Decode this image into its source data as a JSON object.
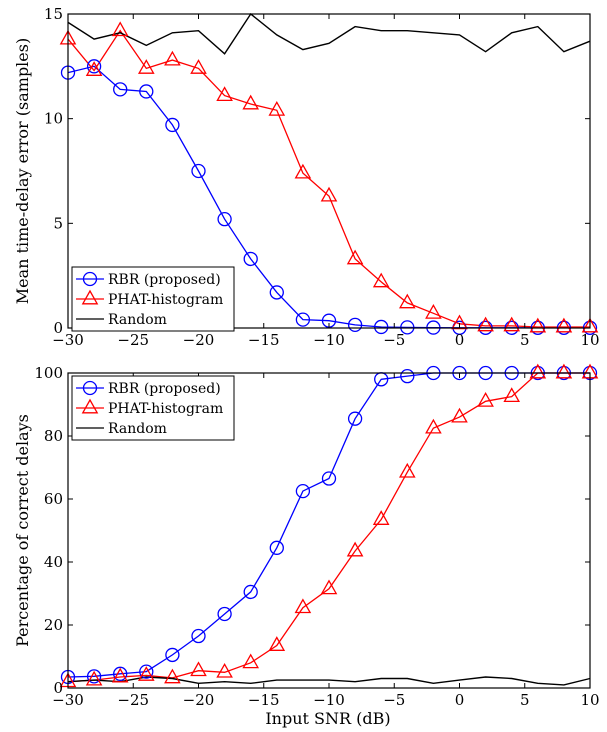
{
  "figure": {
    "x_label": "Input SNR (dB)"
  },
  "chart_data": [
    {
      "type": "line",
      "ylabel": "Mean time-delay error (samples)",
      "xlabel": "",
      "xlim": [
        -30,
        10
      ],
      "ylim": [
        0,
        15
      ],
      "x_ticks": [
        -30,
        -25,
        -20,
        -15,
        -10,
        -5,
        0,
        5,
        10
      ],
      "y_ticks": [
        0,
        5,
        10,
        15
      ],
      "grid": false,
      "legend_position": "bottom-left",
      "series": [
        {
          "name": "RBR (proposed)",
          "color": "#0000ff",
          "marker": "circle",
          "x": [
            -30,
            -28,
            -26,
            -24,
            -22,
            -20,
            -18,
            -16,
            -14,
            -12,
            -10,
            -8,
            -6,
            -4,
            -2,
            0,
            2,
            4,
            6,
            8,
            10
          ],
          "values": [
            12.2,
            12.5,
            11.4,
            11.3,
            9.7,
            7.5,
            5.2,
            3.3,
            1.7,
            0.4,
            0.35,
            0.15,
            0.05,
            0.03,
            0.02,
            0.01,
            0.01,
            0.01,
            0.01,
            0.01,
            0.01
          ]
        },
        {
          "name": "PHAT-histogram",
          "color": "#ff0000",
          "marker": "triangle",
          "x": [
            -30,
            -28,
            -26,
            -24,
            -22,
            -20,
            -18,
            -16,
            -14,
            -12,
            -10,
            -8,
            -6,
            -4,
            -2,
            0,
            2,
            4,
            6,
            8,
            10
          ],
          "values": [
            13.8,
            12.3,
            14.2,
            12.4,
            12.8,
            12.4,
            11.1,
            10.7,
            10.4,
            7.4,
            6.3,
            3.3,
            2.2,
            1.2,
            0.7,
            0.2,
            0.1,
            0.1,
            0.05,
            0.05,
            0.05
          ]
        },
        {
          "name": "Random",
          "color": "#000000",
          "marker": "none",
          "x": [
            -30,
            -28,
            -26,
            -24,
            -22,
            -20,
            -18,
            -16,
            -14,
            -12,
            -10,
            -8,
            -6,
            -4,
            -2,
            0,
            2,
            4,
            6,
            8,
            10
          ],
          "values": [
            14.6,
            13.8,
            14.1,
            13.5,
            14.1,
            14.2,
            13.1,
            15.0,
            14.0,
            13.3,
            13.6,
            14.4,
            14.2,
            14.2,
            14.1,
            14.0,
            13.2,
            14.1,
            14.4,
            13.2,
            13.7
          ]
        }
      ]
    },
    {
      "type": "line",
      "ylabel": "Percentage of correct delays",
      "xlabel": "Input SNR (dB)",
      "xlim": [
        -30,
        10
      ],
      "ylim": [
        0,
        100
      ],
      "x_ticks": [
        -30,
        -25,
        -20,
        -15,
        -10,
        -5,
        0,
        5,
        10
      ],
      "y_ticks": [
        0,
        20,
        40,
        60,
        80,
        100
      ],
      "grid": false,
      "legend_position": "top-left",
      "series": [
        {
          "name": "RBR (proposed)",
          "color": "#0000ff",
          "marker": "circle",
          "x": [
            -30,
            -28,
            -26,
            -24,
            -22,
            -20,
            -18,
            -16,
            -14,
            -12,
            -10,
            -8,
            -6,
            -4,
            -2,
            0,
            2,
            4,
            6,
            8,
            10
          ],
          "values": [
            3.5,
            3.7,
            4.5,
            5.2,
            10.5,
            16.5,
            23.5,
            30.5,
            44.5,
            62.5,
            66.5,
            85.5,
            98.0,
            99.0,
            100,
            100,
            100,
            100,
            100,
            100,
            100
          ]
        },
        {
          "name": "PHAT-histogram",
          "color": "#ff0000",
          "marker": "triangle",
          "x": [
            -30,
            -28,
            -26,
            -24,
            -22,
            -20,
            -18,
            -16,
            -14,
            -12,
            -10,
            -8,
            -6,
            -4,
            -2,
            0,
            2,
            4,
            6,
            8,
            10
          ],
          "values": [
            2.0,
            2.5,
            3.5,
            4.0,
            3.2,
            5.5,
            5.0,
            8.0,
            13.5,
            25.5,
            31.5,
            43.5,
            53.5,
            68.5,
            82.5,
            86.0,
            91.0,
            92.5,
            100,
            100,
            100
          ]
        },
        {
          "name": "Random",
          "color": "#000000",
          "marker": "none",
          "x": [
            -30,
            -28,
            -26,
            -24,
            -22,
            -20,
            -18,
            -16,
            -14,
            -12,
            -10,
            -8,
            -6,
            -4,
            -2,
            0,
            2,
            4,
            6,
            8,
            10
          ],
          "values": [
            2.0,
            2.5,
            2.0,
            3.5,
            3.0,
            1.5,
            2.0,
            1.5,
            2.5,
            2.5,
            2.5,
            2.0,
            3.0,
            3.0,
            1.5,
            2.5,
            3.5,
            3.0,
            1.5,
            1.0,
            3.0
          ]
        }
      ]
    }
  ]
}
